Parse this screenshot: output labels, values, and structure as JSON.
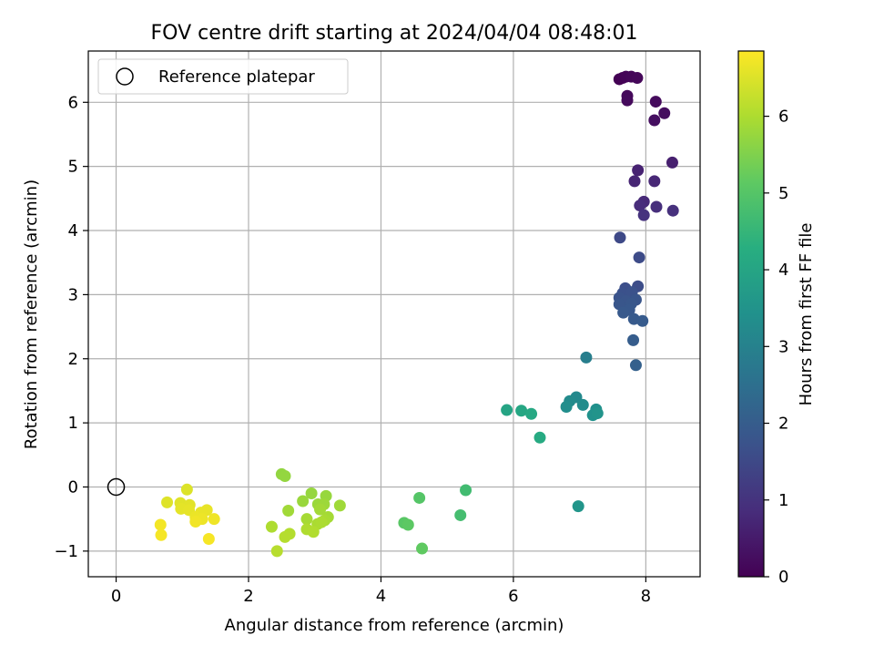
{
  "chart_data": {
    "type": "scatter",
    "title": "FOV centre drift starting at 2024/04/04 08:48:01",
    "xlabel": "Angular distance from reference (arcmin)",
    "ylabel": "Rotation from reference (arcmin)",
    "xlim": [
      -0.42,
      8.82
    ],
    "ylim": [
      -1.4,
      6.8
    ],
    "xticks": [
      0,
      2,
      4,
      6,
      8
    ],
    "yticks": [
      -1,
      0,
      1,
      2,
      3,
      4,
      5,
      6
    ],
    "xtick_labels": [
      "0",
      "2",
      "4",
      "6",
      "8"
    ],
    "ytick_labels": [
      "−1",
      "0",
      "1",
      "2",
      "3",
      "4",
      "5",
      "6"
    ],
    "grid": true,
    "legend": {
      "position": "top-left",
      "entries": [
        "Reference platepar"
      ]
    },
    "reference_point": {
      "x": 0,
      "y": 0
    },
    "colorbar": {
      "label": "Hours from first FF file",
      "colormap": "viridis",
      "range": [
        0,
        6.85
      ],
      "ticks": [
        0,
        1,
        2,
        3,
        4,
        5,
        6
      ],
      "tick_labels": [
        "0",
        "1",
        "2",
        "3",
        "4",
        "5",
        "6"
      ]
    },
    "points": [
      {
        "x": 7.6,
        "y": 6.36,
        "t": 0.0
      },
      {
        "x": 7.65,
        "y": 6.38,
        "t": 0.03
      },
      {
        "x": 7.7,
        "y": 6.4,
        "t": 0.06
      },
      {
        "x": 7.78,
        "y": 6.4,
        "t": 0.09
      },
      {
        "x": 7.87,
        "y": 6.38,
        "t": 0.12
      },
      {
        "x": 7.72,
        "y": 6.1,
        "t": 0.15
      },
      {
        "x": 7.72,
        "y": 6.03,
        "t": 0.18
      },
      {
        "x": 8.15,
        "y": 6.01,
        "t": 0.2
      },
      {
        "x": 8.28,
        "y": 5.83,
        "t": 0.23
      },
      {
        "x": 8.13,
        "y": 5.72,
        "t": 0.26
      },
      {
        "x": 8.4,
        "y": 5.06,
        "t": 0.6
      },
      {
        "x": 7.88,
        "y": 4.94,
        "t": 0.65
      },
      {
        "x": 7.83,
        "y": 4.77,
        "t": 0.7
      },
      {
        "x": 8.13,
        "y": 4.77,
        "t": 0.75
      },
      {
        "x": 7.97,
        "y": 4.45,
        "t": 0.8
      },
      {
        "x": 7.91,
        "y": 4.39,
        "t": 0.85
      },
      {
        "x": 8.16,
        "y": 4.37,
        "t": 0.9
      },
      {
        "x": 8.41,
        "y": 4.31,
        "t": 0.95
      },
      {
        "x": 7.97,
        "y": 4.24,
        "t": 1.0
      },
      {
        "x": 7.61,
        "y": 3.89,
        "t": 1.5
      },
      {
        "x": 7.9,
        "y": 3.58,
        "t": 1.55
      },
      {
        "x": 7.88,
        "y": 3.13,
        "t": 1.6
      },
      {
        "x": 7.69,
        "y": 3.1,
        "t": 1.65
      },
      {
        "x": 7.65,
        "y": 3.02,
        "t": 1.7
      },
      {
        "x": 7.79,
        "y": 3.04,
        "t": 1.72
      },
      {
        "x": 7.6,
        "y": 2.95,
        "t": 1.75
      },
      {
        "x": 7.7,
        "y": 2.9,
        "t": 1.78
      },
      {
        "x": 7.85,
        "y": 2.92,
        "t": 1.8
      },
      {
        "x": 7.6,
        "y": 2.85,
        "t": 1.82
      },
      {
        "x": 7.78,
        "y": 2.86,
        "t": 1.85
      },
      {
        "x": 7.75,
        "y": 2.76,
        "t": 1.88
      },
      {
        "x": 7.66,
        "y": 2.72,
        "t": 1.9
      },
      {
        "x": 7.82,
        "y": 2.62,
        "t": 1.92
      },
      {
        "x": 7.95,
        "y": 2.59,
        "t": 1.95
      },
      {
        "x": 7.81,
        "y": 2.29,
        "t": 2.0
      },
      {
        "x": 7.85,
        "y": 1.9,
        "t": 2.1
      },
      {
        "x": 7.1,
        "y": 2.02,
        "t": 2.9
      },
      {
        "x": 6.95,
        "y": 1.4,
        "t": 3.2
      },
      {
        "x": 6.85,
        "y": 1.34,
        "t": 3.25
      },
      {
        "x": 7.05,
        "y": 1.28,
        "t": 3.3
      },
      {
        "x": 6.8,
        "y": 1.25,
        "t": 3.35
      },
      {
        "x": 7.25,
        "y": 1.21,
        "t": 3.4
      },
      {
        "x": 7.2,
        "y": 1.12,
        "t": 3.45
      },
      {
        "x": 7.27,
        "y": 1.15,
        "t": 3.5
      },
      {
        "x": 6.98,
        "y": -0.3,
        "t": 3.55
      },
      {
        "x": 5.9,
        "y": 1.2,
        "t": 4.0
      },
      {
        "x": 6.12,
        "y": 1.19,
        "t": 4.05
      },
      {
        "x": 6.27,
        "y": 1.14,
        "t": 4.1
      },
      {
        "x": 6.4,
        "y": 0.77,
        "t": 4.15
      },
      {
        "x": 5.28,
        "y": -0.05,
        "t": 4.7
      },
      {
        "x": 5.2,
        "y": -0.44,
        "t": 4.75
      },
      {
        "x": 4.58,
        "y": -0.17,
        "t": 5.0
      },
      {
        "x": 4.35,
        "y": -0.56,
        "t": 5.05
      },
      {
        "x": 4.41,
        "y": -0.59,
        "t": 5.1
      },
      {
        "x": 4.62,
        "y": -0.96,
        "t": 5.15
      },
      {
        "x": 2.5,
        "y": 0.2,
        "t": 5.7
      },
      {
        "x": 2.55,
        "y": 0.17,
        "t": 5.72
      },
      {
        "x": 2.95,
        "y": -0.1,
        "t": 5.74
      },
      {
        "x": 3.17,
        "y": -0.14,
        "t": 5.76
      },
      {
        "x": 2.82,
        "y": -0.22,
        "t": 5.78
      },
      {
        "x": 3.05,
        "y": -0.27,
        "t": 5.8
      },
      {
        "x": 3.14,
        "y": -0.27,
        "t": 5.82
      },
      {
        "x": 3.38,
        "y": -0.29,
        "t": 5.84
      },
      {
        "x": 2.6,
        "y": -0.37,
        "t": 5.86
      },
      {
        "x": 3.08,
        "y": -0.35,
        "t": 5.88
      },
      {
        "x": 3.2,
        "y": -0.47,
        "t": 5.9
      },
      {
        "x": 2.88,
        "y": -0.5,
        "t": 5.92
      },
      {
        "x": 3.15,
        "y": -0.52,
        "t": 5.94
      },
      {
        "x": 3.04,
        "y": -0.58,
        "t": 5.96
      },
      {
        "x": 3.1,
        "y": -0.55,
        "t": 5.98
      },
      {
        "x": 2.35,
        "y": -0.62,
        "t": 6.0
      },
      {
        "x": 2.88,
        "y": -0.66,
        "t": 6.02
      },
      {
        "x": 2.98,
        "y": -0.7,
        "t": 6.04
      },
      {
        "x": 2.62,
        "y": -0.73,
        "t": 6.06
      },
      {
        "x": 2.55,
        "y": -0.78,
        "t": 6.08
      },
      {
        "x": 2.43,
        "y": -1.0,
        "t": 6.1
      },
      {
        "x": 1.07,
        "y": -0.04,
        "t": 6.5
      },
      {
        "x": 0.77,
        "y": -0.24,
        "t": 6.52
      },
      {
        "x": 0.97,
        "y": -0.25,
        "t": 6.54
      },
      {
        "x": 1.11,
        "y": -0.28,
        "t": 6.56
      },
      {
        "x": 0.98,
        "y": -0.34,
        "t": 6.58
      },
      {
        "x": 1.1,
        "y": -0.36,
        "t": 6.6
      },
      {
        "x": 1.37,
        "y": -0.36,
        "t": 6.62
      },
      {
        "x": 1.28,
        "y": -0.4,
        "t": 6.64
      },
      {
        "x": 1.2,
        "y": -0.47,
        "t": 6.66
      },
      {
        "x": 1.3,
        "y": -0.5,
        "t": 6.68
      },
      {
        "x": 1.48,
        "y": -0.5,
        "t": 6.7
      },
      {
        "x": 1.2,
        "y": -0.54,
        "t": 6.72
      },
      {
        "x": 0.67,
        "y": -0.59,
        "t": 6.74
      },
      {
        "x": 0.68,
        "y": -0.75,
        "t": 6.76
      },
      {
        "x": 1.4,
        "y": -0.81,
        "t": 6.78
      }
    ]
  }
}
